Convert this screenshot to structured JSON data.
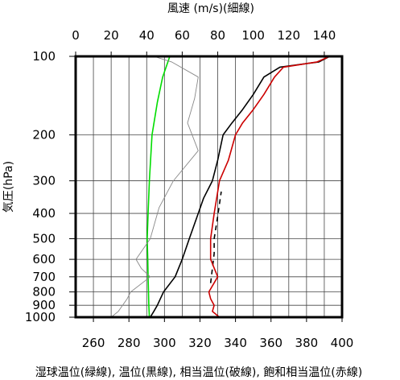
{
  "chart_data": {
    "type": "line",
    "top_axis_label": "風速 (m/s)(細線)",
    "bottom_axis_label": "湿球温位(緑線), 温位(黒線), 相当温位(破線), 飽和相当温位(赤線)",
    "ylabel": "気圧(hPa)",
    "y_scale": "log",
    "y_reversed": true,
    "ylim": [
      1000,
      100
    ],
    "y_ticks": [
      100,
      200,
      300,
      400,
      500,
      600,
      700,
      800,
      900,
      1000
    ],
    "x_bottom_lim": [
      250,
      400
    ],
    "x_bottom_ticks": [
      260,
      280,
      300,
      320,
      340,
      360,
      380,
      400
    ],
    "x_top_lim": [
      0,
      150
    ],
    "x_top_ticks": [
      0,
      20,
      40,
      60,
      80,
      100,
      120,
      140
    ],
    "grid": true,
    "series": [
      {
        "axis": "bottom",
        "color": "#00dd00",
        "style": "solid",
        "points": [
          [
            291.5,
            1000
          ],
          [
            291.2,
            900
          ],
          [
            291,
            800
          ],
          [
            290.8,
            700
          ],
          [
            290.6,
            600
          ],
          [
            290.3,
            500
          ],
          [
            290.8,
            400
          ],
          [
            291.5,
            300
          ],
          [
            293,
            200
          ],
          [
            296,
            150
          ],
          [
            299,
            120
          ],
          [
            303,
            100
          ]
        ]
      },
      {
        "axis": "bottom",
        "color": "#000000",
        "style": "solid",
        "points": [
          [
            292,
            1000
          ],
          [
            294,
            950
          ],
          [
            296,
            900
          ],
          [
            299.5,
            800
          ],
          [
            306,
            700
          ],
          [
            310,
            600
          ],
          [
            314,
            500
          ],
          [
            319,
            400
          ],
          [
            322,
            350
          ],
          [
            327,
            300
          ],
          [
            330,
            250
          ],
          [
            333,
            200
          ],
          [
            338,
            180
          ],
          [
            344,
            160
          ],
          [
            350,
            140
          ],
          [
            356,
            120
          ],
          [
            365,
            110
          ],
          [
            387,
            105
          ],
          [
            393,
            100
          ]
        ]
      },
      {
        "axis": "bottom",
        "color": "#000000",
        "style": "dashed",
        "points": [
          [
            326,
            740
          ],
          [
            327,
            650
          ],
          [
            328,
            570
          ],
          [
            328,
            500
          ],
          [
            330,
            410
          ],
          [
            332,
            330
          ]
        ]
      },
      {
        "axis": "bottom",
        "color": "#cc0000",
        "style": "solid",
        "points": [
          [
            331,
            1000
          ],
          [
            327,
            950
          ],
          [
            328,
            900
          ],
          [
            326,
            850
          ],
          [
            325,
            800
          ],
          [
            330,
            700
          ],
          [
            326,
            600
          ],
          [
            326,
            500
          ],
          [
            328,
            400
          ],
          [
            331,
            300
          ],
          [
            336,
            250
          ],
          [
            340,
            200
          ],
          [
            344,
            180
          ],
          [
            350,
            160
          ],
          [
            356,
            140
          ],
          [
            362,
            120
          ],
          [
            367,
            110
          ],
          [
            386,
            105
          ],
          [
            393,
            100
          ]
        ]
      },
      {
        "axis": "top",
        "color": "#888888",
        "style": "solid",
        "points": [
          [
            20,
            1000
          ],
          [
            24,
            950
          ],
          [
            29,
            850
          ],
          [
            31,
            800
          ],
          [
            42,
            700
          ],
          [
            37,
            650
          ],
          [
            34,
            600
          ],
          [
            42,
            500
          ],
          [
            47,
            380
          ],
          [
            55,
            300
          ],
          [
            69,
            230
          ],
          [
            63,
            180
          ],
          [
            67,
            145
          ],
          [
            69,
            120
          ],
          [
            54,
            105
          ],
          [
            44,
            100
          ]
        ]
      }
    ]
  }
}
